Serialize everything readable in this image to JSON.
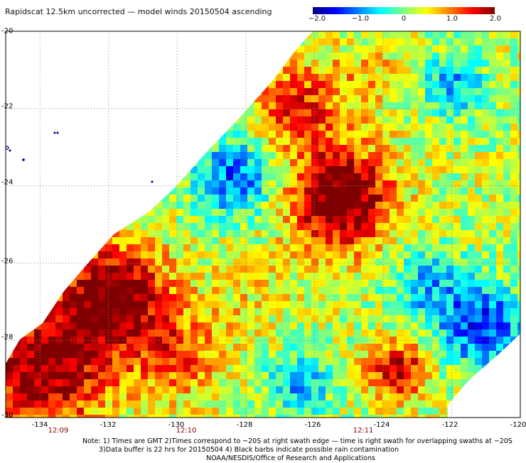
{
  "title": "Rapidscat 12.5km uncorrected — model winds 20150504 ascending",
  "colorbar": {
    "ticks": [
      "−2.0",
      "−1.0",
      "0",
      "1.0",
      "2.0"
    ],
    "colors": [
      "#00007f",
      "#0000ff",
      "#007fff",
      "#00ffff",
      "#7fff7f",
      "#ffff00",
      "#ff7f00",
      "#ff0000",
      "#7f0000"
    ],
    "range": [
      -2.0,
      2.0
    ]
  },
  "map": {
    "lat_labels": [
      "-20",
      "-22",
      "-24",
      "-26",
      "-28",
      "-30"
    ],
    "lon_labels": [
      "-134",
      "-132",
      "-130",
      "-128",
      "-126",
      "-124",
      "-122",
      "-120"
    ],
    "time_labels": [
      "12:09",
      "12:10",
      "12:11"
    ],
    "lon_range": [
      -135,
      -120
    ],
    "lat_range": [
      -30,
      -20
    ],
    "colors": {
      "grid": "#888888",
      "land": "#000080",
      "time": "#8b0000"
    }
  },
  "notes": [
    "Note: 1) Times are GMT 2)Times correspond to ~20S at right swath edge — time is right swath for overlapping swaths at ~20S",
    "3)Data buffer is 22 hrs for 20150504 4) Black barbs indicate possible rain contamination",
    "NOAA/NESDIS/Office of Research and Applications"
  ]
}
